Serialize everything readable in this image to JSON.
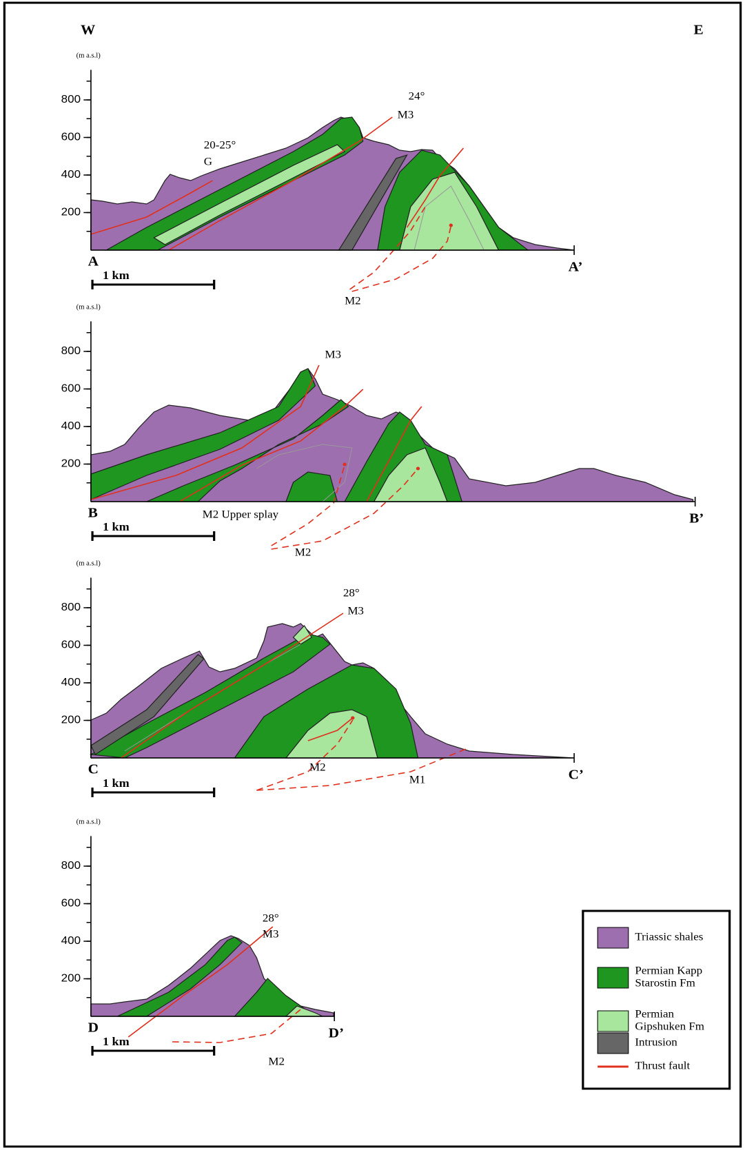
{
  "directions": {
    "west": "W",
    "east": "E"
  },
  "sections": [
    {
      "unit": "(m a.s.l)",
      "yticks": [
        200,
        400,
        600,
        800
      ],
      "start": "A",
      "end": "A’",
      "scale_bar": "1 km",
      "annotations": [
        "20-25°",
        "G",
        "24°",
        "M3",
        "M2"
      ]
    },
    {
      "unit": "(m a.s.l)",
      "yticks": [
        200,
        400,
        600,
        800
      ],
      "start": "B",
      "end": "B’",
      "scale_bar": "1 km",
      "annotations": [
        "M3",
        "M2 Upper splay",
        "M2"
      ]
    },
    {
      "unit": "(m a.s.l)",
      "yticks": [
        200,
        400,
        600,
        800
      ],
      "start": "C",
      "end": "C’",
      "scale_bar": "1 km",
      "annotations": [
        "28°",
        "M3",
        "M2",
        "M1"
      ]
    },
    {
      "unit": "(m a.s.l)",
      "yticks": [
        200,
        400,
        600,
        800
      ],
      "start": "D",
      "end": "D’",
      "scale_bar": "1 km",
      "annotations": [
        "28°",
        "M3",
        "M2"
      ]
    }
  ],
  "legend": [
    {
      "lines": [
        "Triassic shales"
      ],
      "color": "#9e6fae"
    },
    {
      "lines": [
        "Permian Kapp",
        "Starostin Fm"
      ],
      "color": "#1e9620"
    },
    {
      "lines": [
        "Permian",
        "Gipshuken Fm"
      ],
      "color": "#a8e59d"
    },
    {
      "lines": [
        "Intrusion"
      ],
      "color": "#666666"
    },
    {
      "lines": [
        "Thrust fault"
      ],
      "color": "#e0301e"
    }
  ]
}
